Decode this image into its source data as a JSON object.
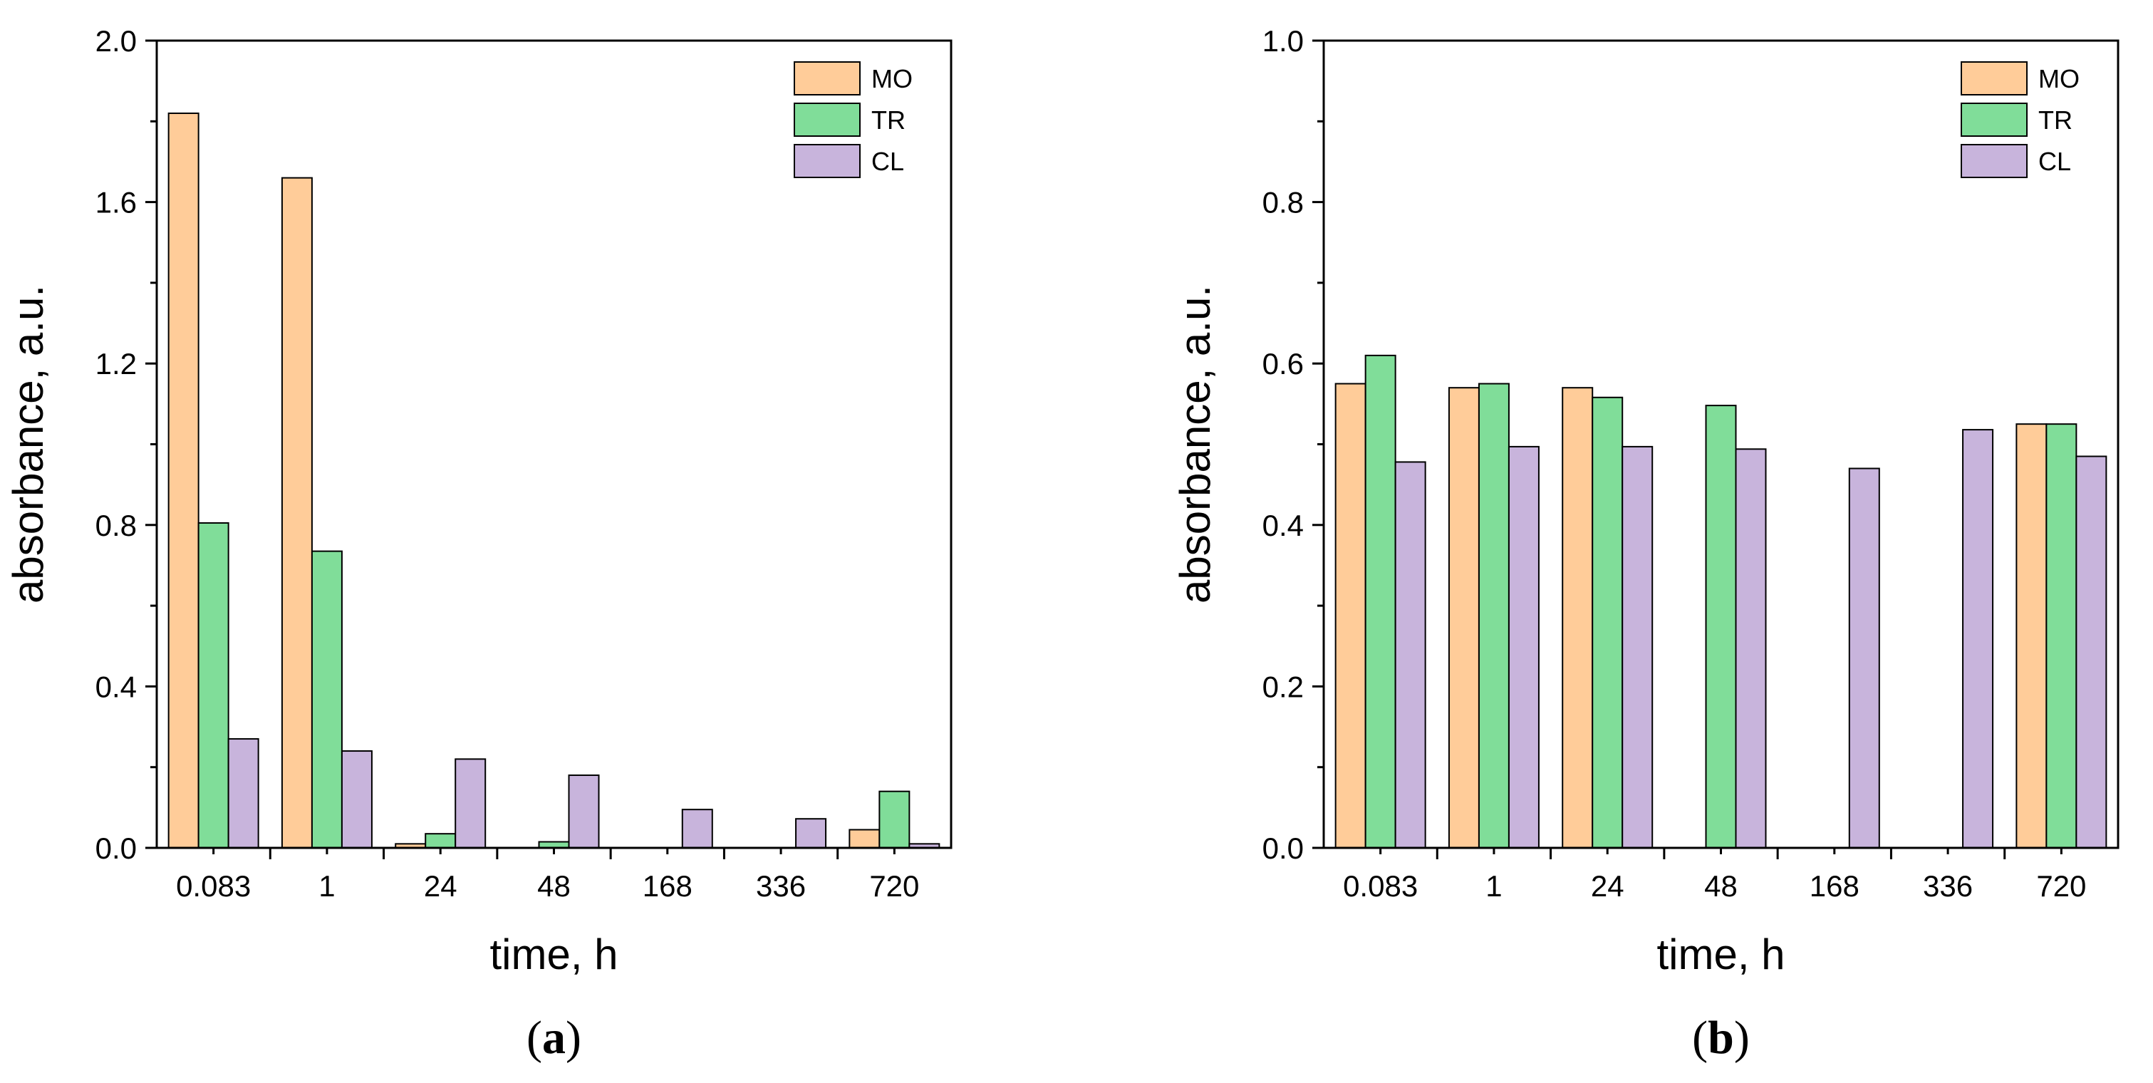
{
  "colors": {
    "MO": "#ffcc99",
    "TR": "#80dd99",
    "CL": "#c8b4dc",
    "axis": "#000000"
  },
  "chart_data": [
    {
      "type": "bar",
      "panel_label": "a",
      "panel_label_display": {
        "open": "(",
        "letter": "a",
        "close": ")"
      },
      "categories": [
        "0.083",
        "1",
        "24",
        "48",
        "168",
        "336",
        "720"
      ],
      "series": [
        {
          "name": "MO",
          "values": [
            1.82,
            1.66,
            0.01,
            0,
            0,
            0,
            0.045
          ]
        },
        {
          "name": "TR",
          "values": [
            0.805,
            0.735,
            0.035,
            0.015,
            0,
            0,
            0.14
          ]
        },
        {
          "name": "CL",
          "values": [
            0.27,
            0.24,
            0.22,
            0.18,
            0.095,
            0.072,
            0.01
          ]
        }
      ],
      "xlabel": "time, h",
      "ylabel": "absorbance, a.u.",
      "ylim": [
        0,
        2.0
      ],
      "yticks": [
        0.0,
        0.4,
        0.8,
        1.2,
        1.6,
        2.0
      ],
      "ytick_labels": [
        "0.0",
        "0.4",
        "0.8",
        "1.2",
        "1.6",
        "2.0"
      ],
      "legend": [
        "MO",
        "TR",
        "CL"
      ],
      "legend_position": "top-right",
      "grid": false
    },
    {
      "type": "bar",
      "panel_label": "b",
      "panel_label_display": {
        "open": "(",
        "letter": "b",
        "close": ")"
      },
      "categories": [
        "0.083",
        "1",
        "24",
        "48",
        "168",
        "336",
        "720"
      ],
      "series": [
        {
          "name": "MO",
          "values": [
            0.575,
            0.57,
            0.57,
            0,
            0,
            0,
            0.525
          ]
        },
        {
          "name": "TR",
          "values": [
            0.61,
            0.575,
            0.558,
            0.548,
            0,
            0,
            0.525
          ]
        },
        {
          "name": "CL",
          "values": [
            0.478,
            0.497,
            0.497,
            0.494,
            0.47,
            0.518,
            0.485
          ]
        }
      ],
      "xlabel": "time, h",
      "ylabel": "absorbance, a.u.",
      "ylim": [
        0,
        1.0
      ],
      "yticks": [
        0.0,
        0.2,
        0.4,
        0.6,
        0.8,
        1.0
      ],
      "ytick_labels": [
        "0.0",
        "0.2",
        "0.4",
        "0.6",
        "0.8",
        "1.0"
      ],
      "legend": [
        "MO",
        "TR",
        "CL"
      ],
      "legend_position": "top-right",
      "grid": false
    }
  ]
}
